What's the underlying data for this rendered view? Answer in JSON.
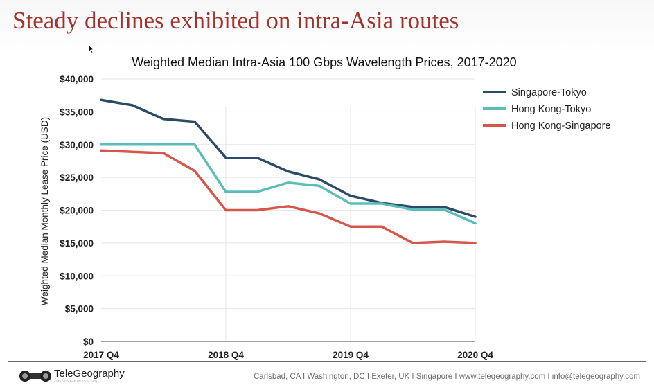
{
  "slide": {
    "title": "Steady declines exhibited on intra-Asia routes"
  },
  "footer": {
    "logo_text": "TeleGeography",
    "logo_tagline": "AUTHORITATIVE TELECOM DATA",
    "contact": "Carlsbad, CA I Washington, DC I Exeter, UK I Singapore I www.telegeography.com I info@telegeography.com"
  },
  "icons": [
    "cursor-icon",
    "telegeography-logo-icon"
  ],
  "chart_data": {
    "type": "line",
    "title": "Weighted Median Intra-Asia 100 Gbps Wavelength Prices, 2017-2020",
    "xlabel": "",
    "ylabel": "Weighted Median Monthly Lease Price (USD)",
    "categories": [
      "2017 Q4",
      "2018 Q1",
      "2018 Q2",
      "2018 Q3",
      "2018 Q4",
      "2019 Q1",
      "2019 Q2",
      "2019 Q3",
      "2019 Q4",
      "2020 Q1",
      "2020 Q2",
      "2020 Q3",
      "2020 Q4"
    ],
    "x_tick_labels": [
      "2017 Q4",
      "2018 Q4",
      "2019 Q4",
      "2020 Q4"
    ],
    "y_tick_labels": [
      "$0",
      "$5,000",
      "$10,000",
      "$15,000",
      "$20,000",
      "$25,000",
      "$30,000",
      "$35,000",
      "$40,000"
    ],
    "ylim": [
      0,
      40000
    ],
    "grid": true,
    "legend_position": "top-right",
    "series": [
      {
        "name": "Singapore-Tokyo",
        "color": "#2b4a68",
        "values": [
          36800,
          36000,
          33900,
          33500,
          28000,
          28000,
          25900,
          24700,
          22200,
          21100,
          20500,
          20500,
          19000
        ]
      },
      {
        "name": "Hong Kong-Tokyo",
        "color": "#5bbdb9",
        "values": [
          30000,
          30000,
          30000,
          30000,
          22800,
          22800,
          24200,
          23700,
          21000,
          21000,
          20100,
          20100,
          18000
        ]
      },
      {
        "name": "Hong Kong-Singapore",
        "color": "#d6564b",
        "values": [
          29100,
          28900,
          28700,
          26000,
          20000,
          20000,
          20600,
          19500,
          17500,
          17500,
          15000,
          15200,
          15000
        ]
      }
    ]
  }
}
